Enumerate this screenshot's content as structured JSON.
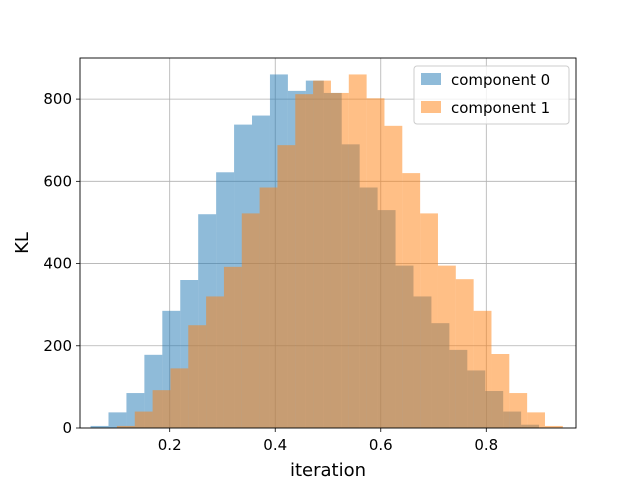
{
  "chart_data": {
    "type": "bar",
    "subtype": "overlapping-histogram",
    "title": "",
    "xlabel": "iteration",
    "ylabel": "KL",
    "xlim": [
      0.03,
      0.97
    ],
    "ylim": [
      0,
      900
    ],
    "xticks": [
      0.2,
      0.4,
      0.6,
      0.8
    ],
    "yticks": [
      0,
      200,
      400,
      600,
      800
    ],
    "grid": true,
    "legend_position": "top-right",
    "series": [
      {
        "name": "component 0",
        "color": "#1f77b4",
        "alpha": 0.5,
        "bin_edges": [
          0.05,
          0.084,
          0.118,
          0.152,
          0.186,
          0.22,
          0.254,
          0.288,
          0.322,
          0.356,
          0.39,
          0.424,
          0.458,
          0.492,
          0.526,
          0.56,
          0.594,
          0.628,
          0.662,
          0.696,
          0.73,
          0.764,
          0.798,
          0.832,
          0.866,
          0.9
        ],
        "values": [
          5,
          38,
          85,
          178,
          285,
          360,
          520,
          622,
          738,
          760,
          860,
          820,
          845,
          815,
          690,
          585,
          530,
          395,
          320,
          255,
          190,
          140,
          90,
          40,
          8
        ]
      },
      {
        "name": "component 1",
        "color": "#ff7f0e",
        "alpha": 0.5,
        "bin_edges": [
          0.1,
          0.1338,
          0.1676,
          0.2014,
          0.2352,
          0.269,
          0.3028,
          0.3366,
          0.3704,
          0.4042,
          0.438,
          0.4718,
          0.5056,
          0.5394,
          0.5732,
          0.607,
          0.6408,
          0.6746,
          0.7084,
          0.7422,
          0.776,
          0.8098,
          0.8436,
          0.8774,
          0.9112,
          0.945
        ],
        "values": [
          5,
          40,
          92,
          145,
          250,
          320,
          392,
          522,
          585,
          688,
          812,
          845,
          815,
          860,
          802,
          735,
          620,
          522,
          395,
          362,
          285,
          180,
          85,
          38,
          5
        ]
      }
    ]
  }
}
